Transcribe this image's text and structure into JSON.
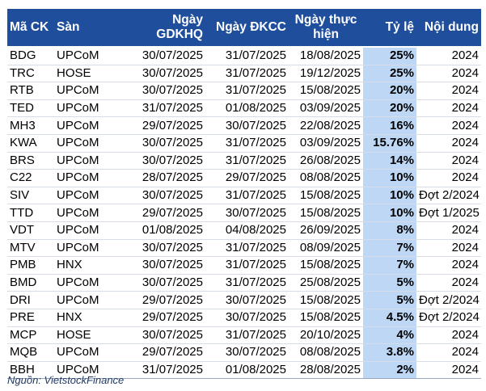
{
  "table": {
    "headers": {
      "ma_ck": "Mã CK",
      "san": "Sàn",
      "ngay_gdkhq": "Ngày GDKHQ",
      "ngay_dkcc": "Ngày ĐKCC",
      "ngay_thuc_hien": "Ngày thực hiện",
      "ty_le": "Tỷ lệ",
      "noi_dung": "Nội dung"
    },
    "rows": [
      {
        "ma": "BDG",
        "san": "UPCoM",
        "gdkhq": "30/07/2025",
        "dkcc": "31/07/2025",
        "thuc_hien": "18/08/2025",
        "ty_le": "25%",
        "noi_dung": "2024"
      },
      {
        "ma": "TRC",
        "san": "HOSE",
        "gdkhq": "30/07/2025",
        "dkcc": "31/07/2025",
        "thuc_hien": "19/12/2025",
        "ty_le": "25%",
        "noi_dung": "2024"
      },
      {
        "ma": "RTB",
        "san": "UPCoM",
        "gdkhq": "30/07/2025",
        "dkcc": "31/07/2025",
        "thuc_hien": "15/08/2025",
        "ty_le": "20%",
        "noi_dung": "2024"
      },
      {
        "ma": "TED",
        "san": "UPCoM",
        "gdkhq": "31/07/2025",
        "dkcc": "01/08/2025",
        "thuc_hien": "03/09/2025",
        "ty_le": "20%",
        "noi_dung": "2024"
      },
      {
        "ma": "MH3",
        "san": "UPCoM",
        "gdkhq": "29/07/2025",
        "dkcc": "30/07/2025",
        "thuc_hien": "22/08/2025",
        "ty_le": "16%",
        "noi_dung": "2024"
      },
      {
        "ma": "KWA",
        "san": "UPCoM",
        "gdkhq": "30/07/2025",
        "dkcc": "31/07/2025",
        "thuc_hien": "03/09/2025",
        "ty_le": "15.76%",
        "noi_dung": "2024"
      },
      {
        "ma": "BRS",
        "san": "UPCoM",
        "gdkhq": "30/07/2025",
        "dkcc": "31/07/2025",
        "thuc_hien": "26/08/2025",
        "ty_le": "14%",
        "noi_dung": "2024"
      },
      {
        "ma": "C22",
        "san": "UPCoM",
        "gdkhq": "28/07/2025",
        "dkcc": "29/07/2025",
        "thuc_hien": "08/08/2025",
        "ty_le": "10%",
        "noi_dung": "2024"
      },
      {
        "ma": "SIV",
        "san": "UPCoM",
        "gdkhq": "30/07/2025",
        "dkcc": "31/07/2025",
        "thuc_hien": "15/08/2025",
        "ty_le": "10%",
        "noi_dung": "Đợt 2/2024"
      },
      {
        "ma": "TTD",
        "san": "UPCoM",
        "gdkhq": "29/07/2025",
        "dkcc": "30/07/2025",
        "thuc_hien": "15/08/2025",
        "ty_le": "10%",
        "noi_dung": "Đợt 1/2025"
      },
      {
        "ma": "VDT",
        "san": "UPCoM",
        "gdkhq": "01/08/2025",
        "dkcc": "04/08/2025",
        "thuc_hien": "26/09/2025",
        "ty_le": "8%",
        "noi_dung": "2024"
      },
      {
        "ma": "MTV",
        "san": "UPCoM",
        "gdkhq": "30/07/2025",
        "dkcc": "31/07/2025",
        "thuc_hien": "08/09/2025",
        "ty_le": "7%",
        "noi_dung": "2024"
      },
      {
        "ma": "PMB",
        "san": "HNX",
        "gdkhq": "30/07/2025",
        "dkcc": "31/07/2025",
        "thuc_hien": "15/08/2025",
        "ty_le": "7%",
        "noi_dung": "2024"
      },
      {
        "ma": "BMD",
        "san": "UPCoM",
        "gdkhq": "30/07/2025",
        "dkcc": "31/07/2025",
        "thuc_hien": "25/08/2025",
        "ty_le": "5%",
        "noi_dung": "2024"
      },
      {
        "ma": "DRI",
        "san": "UPCoM",
        "gdkhq": "29/07/2025",
        "dkcc": "30/07/2025",
        "thuc_hien": "15/08/2025",
        "ty_le": "5%",
        "noi_dung": "Đợt 2/2024"
      },
      {
        "ma": "PRE",
        "san": "HNX",
        "gdkhq": "29/07/2025",
        "dkcc": "30/07/2025",
        "thuc_hien": "15/08/2025",
        "ty_le": "4.5%",
        "noi_dung": "Đợt 2/2024"
      },
      {
        "ma": "MCP",
        "san": "HOSE",
        "gdkhq": "30/07/2025",
        "dkcc": "31/07/2025",
        "thuc_hien": "20/10/2025",
        "ty_le": "4%",
        "noi_dung": "2024"
      },
      {
        "ma": "MQB",
        "san": "UPCoM",
        "gdkhq": "29/07/2025",
        "dkcc": "30/07/2025",
        "thuc_hien": "08/08/2025",
        "ty_le": "3.8%",
        "noi_dung": "2024"
      },
      {
        "ma": "BBH",
        "san": "UPCoM",
        "gdkhq": "31/07/2025",
        "dkcc": "01/08/2025",
        "thuc_hien": "28/08/2025",
        "ty_le": "2%",
        "noi_dung": "2024"
      }
    ]
  },
  "source": "Nguồn: VietstockFinance",
  "colors": {
    "header_bg": "#1f4e9c",
    "ratio_column_bg": "#bdd7f5"
  }
}
